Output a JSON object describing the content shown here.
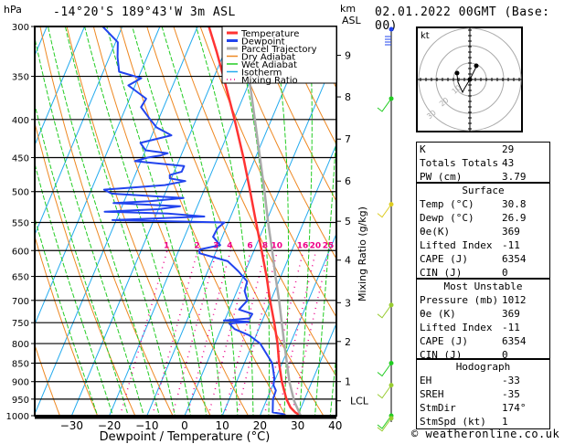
{
  "header": {
    "location": "-14°20'S  189°43'W  3m  ASL",
    "datetime": "02.01.2022  00GMT  (Base: 00)",
    "pressure_unit": "hPa",
    "height_unit_line1": "km",
    "height_unit_line2": "ASL"
  },
  "legend": [
    {
      "label": "Temperature",
      "color": "#ff3333",
      "style": "solid"
    },
    {
      "label": "Dewpoint",
      "color": "#2244ee",
      "style": "solid"
    },
    {
      "label": "Parcel Trajectory",
      "color": "#aaaaaa",
      "style": "solid"
    },
    {
      "label": "Dry Adiabat",
      "color": "#ee8822",
      "style": "solid"
    },
    {
      "label": "Wet Adiabat",
      "color": "#22cc22",
      "style": "solid"
    },
    {
      "label": "Isotherm",
      "color": "#22aaee",
      "style": "solid"
    },
    {
      "label": "Mixing Ratio",
      "color": "#ee0088",
      "style": "dotted"
    }
  ],
  "chart_data": {
    "type": "line",
    "subtype": "skew-t log-p",
    "title": "-14°20'S 189°43'W 3m ASL",
    "xlabel": "Dewpoint / Temperature (°C)",
    "ylabel": "hPa",
    "y2label": "Mixing Ratio (g/kg)",
    "xlim": [
      -40,
      40
    ],
    "ylim": [
      1000,
      300
    ],
    "x_ticks": [
      -30,
      -20,
      -10,
      0,
      10,
      20,
      30,
      40
    ],
    "pressure_levels": [
      300,
      350,
      400,
      450,
      500,
      550,
      600,
      650,
      700,
      750,
      800,
      850,
      900,
      950,
      1000
    ],
    "height_km_ticks": [
      {
        "label": "9",
        "p": 328
      },
      {
        "label": "8",
        "p": 373
      },
      {
        "label": "7",
        "p": 425
      },
      {
        "label": "6",
        "p": 484
      },
      {
        "label": "5",
        "p": 548
      },
      {
        "label": "4",
        "p": 618
      },
      {
        "label": "3",
        "p": 705
      },
      {
        "label": "2",
        "p": 795
      },
      {
        "label": "1",
        "p": 900
      },
      {
        "label": "LCL",
        "p": 955
      }
    ],
    "mixing_ratio_labels": [
      "1",
      "2",
      "3",
      "4",
      "6",
      "8",
      "10",
      "16",
      "20",
      "25"
    ],
    "mixing_ratio_values": [
      1,
      2,
      3,
      4,
      6,
      8,
      10,
      16,
      20,
      25
    ],
    "series": [
      {
        "name": "Temperature",
        "color": "#ff3333",
        "points": [
          [
            1000,
            30.8
          ],
          [
            990,
            29
          ],
          [
            975,
            27.2
          ],
          [
            950,
            25.2
          ],
          [
            925,
            23.6
          ],
          [
            900,
            22.0
          ],
          [
            850,
            19.2
          ],
          [
            800,
            16.6
          ],
          [
            750,
            13.4
          ],
          [
            700,
            9.8
          ],
          [
            650,
            6.2
          ],
          [
            600,
            2.0
          ],
          [
            550,
            -2.6
          ],
          [
            500,
            -7.6
          ],
          [
            450,
            -13.2
          ],
          [
            400,
            -19.8
          ],
          [
            350,
            -27.6
          ],
          [
            325,
            -32.0
          ],
          [
            300,
            -37.0
          ]
        ]
      },
      {
        "name": "Dewpoint",
        "color": "#2244ee",
        "points": [
          [
            1000,
            26.9
          ],
          [
            995,
            26.0
          ],
          [
            990,
            23.0
          ],
          [
            950,
            21.6
          ],
          [
            925,
            21.4
          ],
          [
            910,
            20.2
          ],
          [
            890,
            19.6
          ],
          [
            850,
            17.4
          ],
          [
            800,
            12.0
          ],
          [
            780,
            8.2
          ],
          [
            765,
            3.6
          ],
          [
            752,
            1.6
          ],
          [
            748,
            6.6
          ],
          [
            745,
            -0.2
          ],
          [
            740,
            6.4
          ],
          [
            730,
            6.6
          ],
          [
            720,
            2.6
          ],
          [
            700,
            3.8
          ],
          [
            680,
            2.0
          ],
          [
            660,
            1.6
          ],
          [
            640,
            -1.8
          ],
          [
            620,
            -5.8
          ],
          [
            605,
            -14.2
          ],
          [
            598,
            -14.6
          ],
          [
            590,
            -9.6
          ],
          [
            575,
            -12.4
          ],
          [
            560,
            -12.2
          ],
          [
            550,
            -11.0
          ],
          [
            546,
            -41.0
          ],
          [
            540,
            -17.0
          ],
          [
            535,
            -27.0
          ],
          [
            532,
            -44.0
          ],
          [
            528,
            -30.0
          ],
          [
            523,
            -24.6
          ],
          [
            518,
            -42.6
          ],
          [
            515,
            -33.2
          ],
          [
            510,
            -24.6
          ],
          [
            503,
            -44.2
          ],
          [
            497,
            -46.6
          ],
          [
            490,
            -31.0
          ],
          [
            484,
            -26.0
          ],
          [
            480,
            -30.4
          ],
          [
            475,
            -30.8
          ],
          [
            470,
            -28.0
          ],
          [
            462,
            -28.0
          ],
          [
            455,
            -41.6
          ],
          [
            450,
            -38.6
          ],
          [
            447,
            -35.4
          ],
          [
            444,
            -33.8
          ],
          [
            440,
            -40.0
          ],
          [
            430,
            -42.2
          ],
          [
            420,
            -34.8
          ],
          [
            410,
            -39.6
          ],
          [
            400,
            -42.2
          ],
          [
            385,
            -46.0
          ],
          [
            375,
            -45.6
          ],
          [
            360,
            -51.8
          ],
          [
            352,
            -49.2
          ],
          [
            345,
            -55.8
          ],
          [
            330,
            -57.8
          ],
          [
            315,
            -59.4
          ],
          [
            300,
            -65.2
          ]
        ]
      },
      {
        "name": "Parcel Trajectory",
        "color": "#aaaaaa",
        "points": [
          [
            1000,
            30.8
          ],
          [
            955,
            27.4
          ],
          [
            900,
            24.0
          ],
          [
            850,
            21.3
          ],
          [
            800,
            18.4
          ],
          [
            750,
            15.4
          ],
          [
            700,
            12.2
          ],
          [
            650,
            8.6
          ],
          [
            600,
            4.8
          ],
          [
            550,
            0.6
          ],
          [
            500,
            -3.8
          ],
          [
            450,
            -8.8
          ],
          [
            400,
            -14.4
          ],
          [
            350,
            -20.8
          ],
          [
            330,
            -23.6
          ]
        ]
      }
    ],
    "wind_profile": [
      {
        "p": 305,
        "color": "#2244ee"
      },
      {
        "p": 375,
        "color": "#22cc22"
      },
      {
        "p": 520,
        "color": "#ddcc22"
      },
      {
        "p": 710,
        "color": "#99cc33"
      },
      {
        "p": 850,
        "color": "#22cc22"
      },
      {
        "p": 910,
        "color": "#99cc33"
      },
      {
        "p": 1000,
        "color": "#22cc22"
      },
      {
        "p": 1008,
        "color": "#99cc33"
      }
    ]
  },
  "hodograph": {
    "unit_label": "kt",
    "ring_labels": [
      "10",
      "20",
      "30"
    ]
  },
  "indices": {
    "top": [
      {
        "label": "K",
        "value": "29"
      },
      {
        "label": "Totals Totals",
        "value": "43"
      },
      {
        "label": "PW (cm)",
        "value": "3.79"
      }
    ],
    "surface": {
      "title": "Surface",
      "rows": [
        {
          "label": "Temp (°C)",
          "value": "30.8"
        },
        {
          "label": "Dewp (°C)",
          "value": "26.9"
        },
        {
          "label": "θe(K)",
          "value": "369"
        },
        {
          "label": "Lifted Index",
          "value": "-11"
        },
        {
          "label": "CAPE (J)",
          "value": "6354"
        },
        {
          "label": "CIN (J)",
          "value": "0"
        }
      ]
    },
    "most_unstable": {
      "title": "Most Unstable",
      "rows": [
        {
          "label": "Pressure (mb)",
          "value": "1012"
        },
        {
          "label": "θe (K)",
          "value": "369"
        },
        {
          "label": "Lifted Index",
          "value": "-11"
        },
        {
          "label": "CAPE (J)",
          "value": "6354"
        },
        {
          "label": "CIN (J)",
          "value": "0"
        }
      ]
    },
    "hodograph": {
      "title": "Hodograph",
      "rows": [
        {
          "label": "EH",
          "value": "-33"
        },
        {
          "label": "SREH",
          "value": "-35"
        },
        {
          "label": "StmDir",
          "value": "174°"
        },
        {
          "label": "StmSpd (kt)",
          "value": "1"
        }
      ]
    }
  },
  "footer": {
    "copyright": "© weatheronline.co.uk"
  }
}
